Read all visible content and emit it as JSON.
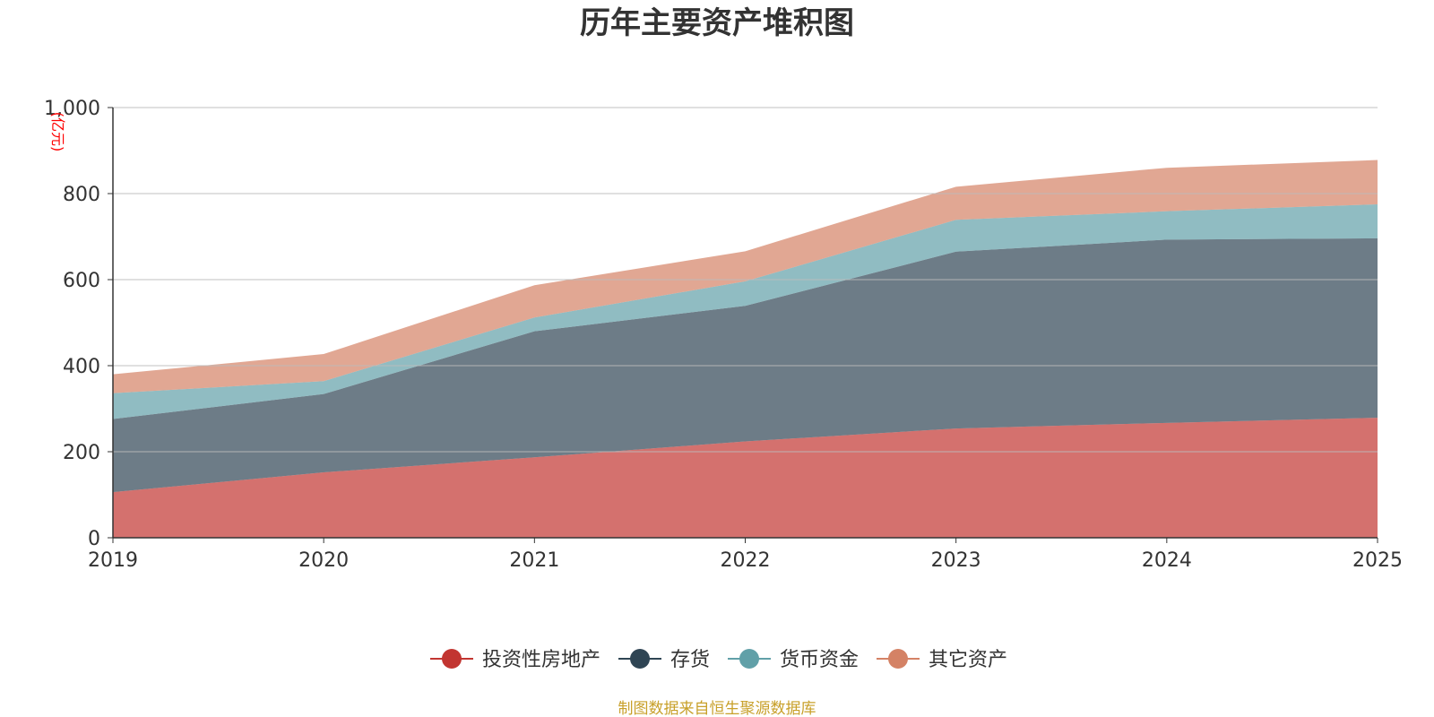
{
  "chart_data": {
    "type": "area",
    "stacked": true,
    "title": "历年主要资产堆积图",
    "y_unit_label": "(亿元)",
    "x": [
      "2019",
      "2020",
      "2021",
      "2022",
      "2023",
      "2024",
      "2025"
    ],
    "ylim": [
      0,
      1000
    ],
    "y_ticks": [
      0,
      200,
      400,
      600,
      800,
      1000
    ],
    "y_tick_labels": [
      "0",
      "200",
      "400",
      "600",
      "800",
      "1,000"
    ],
    "grid": true,
    "legend_position": "bottom",
    "series": [
      {
        "name": "投资性房地产",
        "color": "#c23531",
        "values": [
          106,
          152,
          187,
          224,
          254,
          267,
          279
        ]
      },
      {
        "name": "存货",
        "color": "#2f4554",
        "values": [
          170,
          182,
          293,
          315,
          411,
          426,
          417
        ]
      },
      {
        "name": "货币资金",
        "color": "#61a0a8",
        "values": [
          60,
          30,
          32,
          57,
          74,
          66,
          79
        ]
      },
      {
        "name": "其它资产",
        "color": "#d48265",
        "values": [
          44,
          63,
          75,
          70,
          77,
          101,
          103
        ]
      }
    ],
    "source": "制图数据来自恒生聚源数据库"
  }
}
